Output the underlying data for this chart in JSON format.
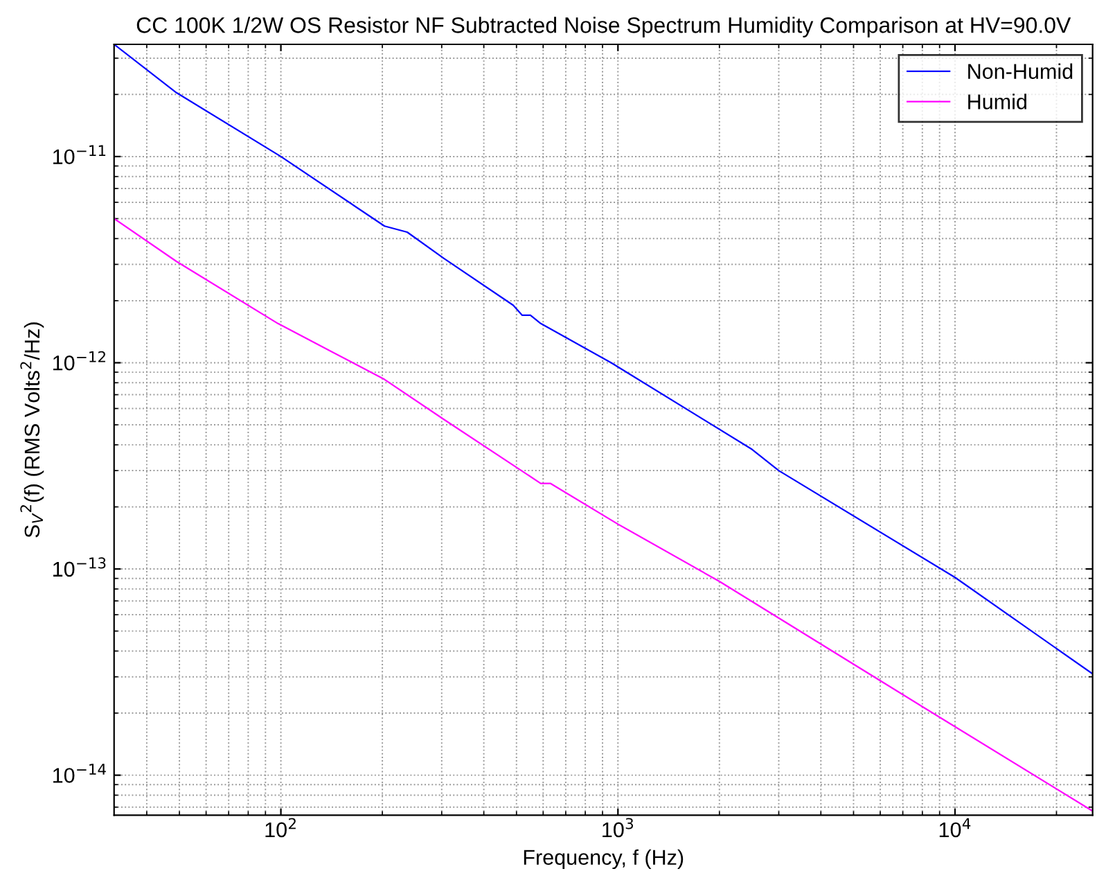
{
  "chart_data": {
    "type": "line",
    "title": "CC 100K 1/2W OS Resistor NF Subtracted Noise Spectrum Humidity Comparison at HV=90.0V",
    "xlabel": "Frequency, f (Hz)",
    "ylabel": "S$_{V}$$^{2}$(f) (RMS Volts$^{2}$/Hz)",
    "log": "xy",
    "grid": true,
    "legend": "top right",
    "xlim": [
      32,
      25600
    ],
    "ylim": [
      6.4e-15,
      3.5e-11
    ],
    "xticks": [
      {
        "value": 100,
        "label": "10$^{2}$"
      },
      {
        "value": 1000,
        "label": "10$^{3}$"
      },
      {
        "value": 10000,
        "label": "10$^{4}$"
      }
    ],
    "yticks": [
      {
        "value": 1e-14,
        "label": "10$^{−14}$"
      },
      {
        "value": 1e-13,
        "label": "10$^{−13}$"
      },
      {
        "value": 1e-12,
        "label": "10$^{−12}$"
      },
      {
        "value": 1e-11,
        "label": "10$^{−11}$"
      }
    ],
    "series": [
      {
        "name": "Non-Humid",
        "color": "#0000ff",
        "x": [
          32,
          49,
          100,
          203,
          237,
          305,
          489,
          520,
          550,
          590,
          955,
          2500,
          3000,
          10000,
          25600
        ],
        "values": [
          3.5e-11,
          2.04e-11,
          1e-11,
          4.6e-12,
          4.3e-12,
          3.2e-12,
          1.9e-12,
          1.7e-12,
          1.7e-12,
          1.55e-12,
          1e-12,
          3.8e-13,
          3e-13,
          9.1e-14,
          3.1e-14
        ]
      },
      {
        "name": "Humid",
        "color": "#ff00ff",
        "x": [
          32,
          49,
          98,
          203,
          305,
          590,
          630,
          1000,
          2000,
          8000,
          25600
        ],
        "values": [
          5e-12,
          3.1e-12,
          1.55e-12,
          8.3e-13,
          5.3e-13,
          2.6e-13,
          2.6e-13,
          1.65e-13,
          8.7e-14,
          2.15e-14,
          6.7e-15
        ]
      }
    ]
  }
}
